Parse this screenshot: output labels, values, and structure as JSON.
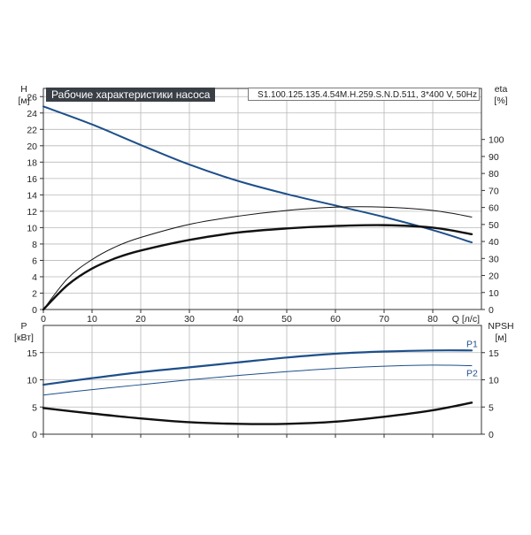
{
  "title": "Рабочие характеристики насоса",
  "model": "S1.100.125.135.4.54M.H.259.S.N.D.511, 3*400 V, 50Hz",
  "colors": {
    "curve_blue": "#1d4f8a",
    "curve_black": "#111111",
    "grid": "#b8b8b8",
    "title_bg": "#3a3f46"
  },
  "chart_data": [
    {
      "type": "line",
      "name": "head-efficiency",
      "ylabel_left": [
        "H",
        "[м]"
      ],
      "ylabel_right": [
        "eta",
        "[%]"
      ],
      "xlabel": "Q [л/с]",
      "xlim": [
        0,
        90
      ],
      "ylim_left": [
        0,
        27
      ],
      "ylim_right": [
        0,
        130
      ],
      "xticks": [
        0,
        10,
        20,
        30,
        40,
        50,
        60,
        70,
        80
      ],
      "yticks_left": [
        0,
        2,
        4,
        6,
        8,
        10,
        12,
        14,
        16,
        18,
        20,
        22,
        24,
        26
      ],
      "yticks_right": [
        0,
        10,
        20,
        30,
        40,
        50,
        60,
        70,
        80,
        90,
        100
      ],
      "grid": true,
      "series": [
        {
          "axis": "left",
          "style": "blue",
          "x": [
            0,
            10,
            20,
            30,
            40,
            50,
            60,
            70,
            80,
            88
          ],
          "y": [
            24.8,
            22.6,
            20.1,
            17.7,
            15.7,
            14.1,
            12.7,
            11.3,
            9.7,
            8.2
          ]
        },
        {
          "axis": "left",
          "style": "black-thick",
          "x": [
            0,
            5,
            10,
            15,
            20,
            30,
            40,
            50,
            60,
            70,
            80,
            88
          ],
          "y": [
            0,
            3.0,
            5.0,
            6.3,
            7.2,
            8.5,
            9.4,
            9.9,
            10.2,
            10.3,
            10.0,
            9.2
          ]
        },
        {
          "axis": "left",
          "style": "black-thin",
          "x": [
            0,
            5,
            10,
            15,
            20,
            30,
            40,
            50,
            60,
            70,
            80,
            88
          ],
          "y": [
            0,
            3.8,
            6.1,
            7.7,
            8.8,
            10.4,
            11.4,
            12.1,
            12.5,
            12.5,
            12.1,
            11.3
          ]
        }
      ]
    },
    {
      "type": "line",
      "name": "power-npsh",
      "ylabel_left": [
        "P",
        "[кВт]"
      ],
      "ylabel_right": [
        "NPSH",
        "[м]"
      ],
      "xlim": [
        0,
        90
      ],
      "ylim_left": [
        0,
        20
      ],
      "ylim_right": [
        0,
        20
      ],
      "xticks": [
        0,
        10,
        20,
        30,
        40,
        50,
        60,
        70,
        80
      ],
      "yticks_left": [
        0,
        5,
        10,
        15
      ],
      "yticks_right": [
        0,
        5,
        10,
        15
      ],
      "grid": true,
      "series": [
        {
          "name": "P1",
          "axis": "left",
          "style": "blue-thick",
          "x": [
            0,
            10,
            20,
            30,
            40,
            50,
            60,
            70,
            80,
            88
          ],
          "y": [
            9.1,
            10.3,
            11.4,
            12.3,
            13.2,
            14.1,
            14.8,
            15.2,
            15.4,
            15.4
          ]
        },
        {
          "name": "P2",
          "axis": "left",
          "style": "blue-thin",
          "x": [
            0,
            10,
            20,
            30,
            40,
            50,
            60,
            70,
            80,
            88
          ],
          "y": [
            7.2,
            8.2,
            9.1,
            10.0,
            10.8,
            11.5,
            12.1,
            12.5,
            12.7,
            12.6
          ]
        },
        {
          "axis": "right",
          "style": "black-thick",
          "x": [
            0,
            10,
            20,
            30,
            40,
            50,
            60,
            70,
            80,
            88
          ],
          "y": [
            4.8,
            3.8,
            2.9,
            2.2,
            1.9,
            1.9,
            2.3,
            3.2,
            4.4,
            5.8
          ]
        }
      ]
    }
  ]
}
